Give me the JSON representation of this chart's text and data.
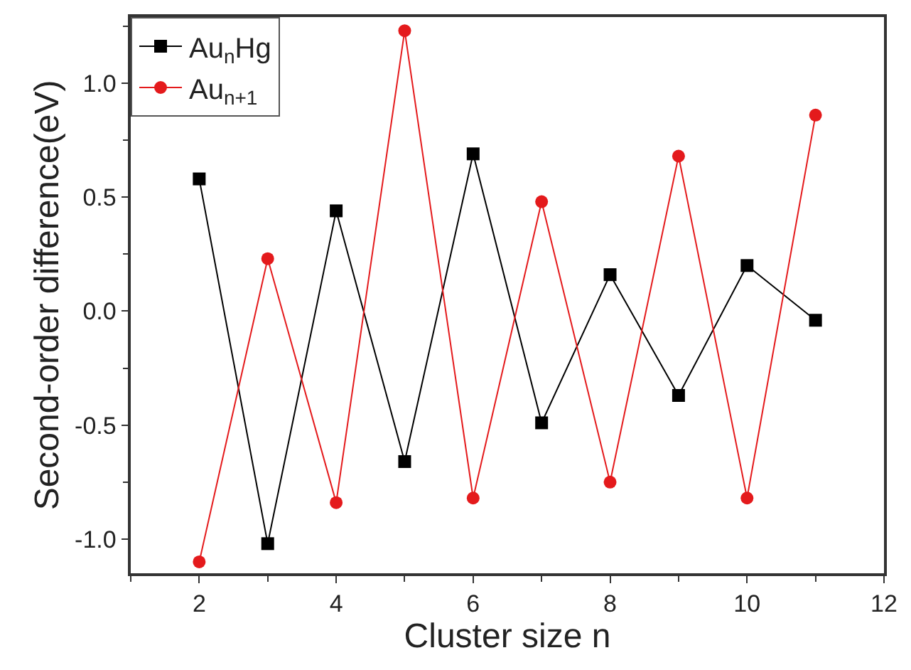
{
  "chart_data": {
    "type": "line",
    "xlabel": "Cluster size n",
    "ylabel": "Second-order difference(eV)",
    "x": [
      2,
      3,
      4,
      5,
      6,
      7,
      8,
      9,
      10,
      11
    ],
    "series": [
      {
        "name": "Au$_{n}$Hg",
        "color": "#000000",
        "marker": "square",
        "values": [
          0.58,
          -1.02,
          0.44,
          -0.66,
          0.69,
          -0.49,
          0.16,
          -0.37,
          0.2,
          -0.04
        ]
      },
      {
        "name": "Au$_{n+1}$",
        "color": "#e41a1c",
        "marker": "circle",
        "values": [
          -1.1,
          0.23,
          -0.84,
          1.23,
          -0.82,
          0.48,
          -0.75,
          0.68,
          -0.82,
          0.86
        ]
      }
    ],
    "xlim": [
      1,
      12
    ],
    "xticks": [
      2,
      4,
      6,
      8,
      10,
      12
    ],
    "ylim": [
      -1.15,
      1.29
    ],
    "yticks": [
      {
        "value": -1,
        "label": "-1.0"
      },
      {
        "value": -0.5,
        "label": "-0.5"
      },
      {
        "value": 0,
        "label": "0.0"
      },
      {
        "value": 0.5,
        "label": "0.5"
      },
      {
        "value": 1,
        "label": "1.0"
      }
    ],
    "legend": "top left",
    "line_style": "solid"
  }
}
